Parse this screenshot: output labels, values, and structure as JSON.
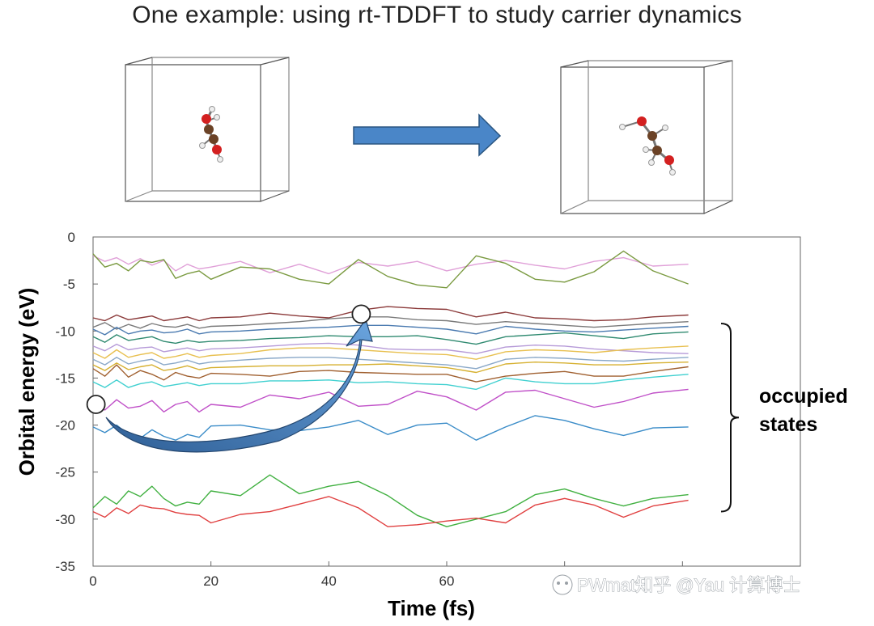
{
  "slide": {
    "title": "One example: using rt-TDDFT to study carrier dynamics",
    "colors": {
      "arrow_fill": "#4a86c8",
      "arrow_stroke": "#2a5580"
    }
  },
  "molecule_panels": [
    {
      "name": "initial-structure",
      "atoms": [
        "O",
        "C",
        "C",
        "O",
        "H",
        "H",
        "H",
        "H",
        "H",
        "H"
      ]
    },
    {
      "name": "final-structure",
      "atoms": [
        "O",
        "C",
        "C",
        "O",
        "H",
        "H",
        "H",
        "H",
        "H",
        "H"
      ]
    }
  ],
  "chart_data": {
    "type": "line",
    "xlabel": "Time (fs)",
    "ylabel": "Orbital energy (eV)",
    "xlim": [
      0,
      120
    ],
    "ylim": [
      -35,
      0
    ],
    "xticks": [
      0,
      20,
      40,
      60,
      80,
      100,
      120
    ],
    "yticks": [
      0,
      -5,
      -10,
      -15,
      -20,
      -25,
      -30,
      -35
    ],
    "xtick_labels": [
      "0",
      "20",
      "40",
      "60",
      "",
      "",
      ""
    ],
    "ytick_labels": [
      "0",
      "-5",
      "-10",
      "-15",
      "-20",
      "-25",
      "-30",
      "-35"
    ],
    "grid": false,
    "x": [
      0,
      2,
      4,
      6,
      8,
      10,
      12,
      14,
      16,
      18,
      20,
      25,
      30,
      35,
      40,
      45,
      50,
      55,
      60,
      65,
      70,
      75,
      80,
      85,
      90,
      95,
      101
    ],
    "series": [
      {
        "color": "#e0a0d8",
        "values": [
          -2.0,
          -2.6,
          -2.2,
          -2.9,
          -2.3,
          -3.0,
          -2.5,
          -3.6,
          -2.9,
          -3.4,
          -3.2,
          -2.6,
          -3.8,
          -2.9,
          -3.9,
          -2.7,
          -3.1,
          -2.6,
          -3.6,
          -2.9,
          -2.5,
          -3.0,
          -3.4,
          -2.6,
          -2.2,
          -3.1,
          -2.9
        ]
      },
      {
        "color": "#7a9a40",
        "values": [
          -1.8,
          -3.2,
          -2.8,
          -3.6,
          -2.5,
          -2.7,
          -2.4,
          -4.4,
          -3.9,
          -3.6,
          -4.5,
          -3.2,
          -3.4,
          -4.5,
          -5.0,
          -2.4,
          -4.2,
          -5.1,
          -5.4,
          -2.0,
          -2.8,
          -4.5,
          -4.8,
          -3.7,
          -1.5,
          -3.6,
          -5.0
        ]
      },
      {
        "color": "#8b3a3a",
        "values": [
          -8.6,
          -8.9,
          -8.3,
          -8.8,
          -8.6,
          -8.4,
          -8.9,
          -8.7,
          -8.5,
          -8.9,
          -8.6,
          -8.5,
          -8.1,
          -8.4,
          -8.6,
          -7.8,
          -7.4,
          -7.6,
          -7.7,
          -8.5,
          -8.0,
          -8.6,
          -8.7,
          -8.9,
          -8.8,
          -8.5,
          -8.3
        ]
      },
      {
        "color": "#7a7a7a",
        "values": [
          -9.6,
          -9.1,
          -9.8,
          -9.3,
          -9.7,
          -9.2,
          -9.5,
          -9.6,
          -9.3,
          -9.7,
          -9.5,
          -9.4,
          -9.2,
          -9.0,
          -8.7,
          -8.5,
          -8.5,
          -8.8,
          -8.9,
          -9.3,
          -9.0,
          -9.2,
          -9.4,
          -9.6,
          -9.4,
          -9.2,
          -9.0
        ]
      },
      {
        "color": "#4a7ab0",
        "values": [
          -9.8,
          -10.4,
          -9.6,
          -10.3,
          -10.0,
          -9.9,
          -10.2,
          -10.1,
          -9.8,
          -10.3,
          -10.1,
          -10.0,
          -9.8,
          -9.7,
          -9.6,
          -9.4,
          -9.4,
          -9.6,
          -9.8,
          -10.3,
          -9.5,
          -9.8,
          -10.0,
          -10.1,
          -9.9,
          -9.7,
          -9.5
        ]
      },
      {
        "color": "#2f8a70",
        "values": [
          -10.6,
          -11.2,
          -10.4,
          -11.0,
          -10.8,
          -10.6,
          -11.1,
          -11.3,
          -11.0,
          -11.2,
          -11.1,
          -11.0,
          -10.8,
          -10.7,
          -10.5,
          -10.6,
          -10.6,
          -10.5,
          -10.9,
          -11.4,
          -10.6,
          -10.4,
          -10.2,
          -10.5,
          -10.8,
          -10.3,
          -10.1
        ]
      },
      {
        "color": "#b69ad8",
        "values": [
          -11.6,
          -12.1,
          -11.4,
          -12.0,
          -11.8,
          -11.7,
          -12.2,
          -12.0,
          -11.8,
          -12.1,
          -11.9,
          -11.8,
          -11.6,
          -11.4,
          -11.3,
          -11.5,
          -11.9,
          -12.0,
          -12.0,
          -12.4,
          -11.7,
          -11.5,
          -11.6,
          -11.9,
          -12.1,
          -12.3,
          -12.4
        ]
      },
      {
        "color": "#e8c050",
        "values": [
          -12.3,
          -12.9,
          -12.0,
          -12.8,
          -12.5,
          -12.3,
          -12.9,
          -12.7,
          -12.4,
          -12.8,
          -12.6,
          -12.4,
          -12.0,
          -11.8,
          -11.8,
          -12.0,
          -12.2,
          -12.4,
          -12.5,
          -13.0,
          -12.2,
          -12.0,
          -12.1,
          -12.3,
          -12.0,
          -11.8,
          -11.6
        ]
      },
      {
        "color": "#8aa8c8",
        "values": [
          -13.0,
          -13.6,
          -12.8,
          -13.5,
          -13.2,
          -13.0,
          -13.6,
          -13.4,
          -13.1,
          -13.5,
          -13.3,
          -13.1,
          -12.9,
          -12.8,
          -12.8,
          -13.0,
          -13.2,
          -13.4,
          -13.6,
          -14.0,
          -13.0,
          -12.8,
          -12.9,
          -13.1,
          -13.2,
          -13.0,
          -12.8
        ]
      },
      {
        "color": "#d6b030",
        "values": [
          -13.6,
          -14.2,
          -13.4,
          -14.1,
          -13.8,
          -13.6,
          -14.2,
          -14.0,
          -13.7,
          -14.1,
          -13.9,
          -13.8,
          -13.7,
          -13.7,
          -13.6,
          -13.6,
          -13.5,
          -13.7,
          -13.9,
          -14.4,
          -13.5,
          -13.3,
          -13.4,
          -13.6,
          -13.6,
          -13.4,
          -13.3
        ]
      },
      {
        "color": "#a06030",
        "values": [
          -14.0,
          -14.8,
          -13.6,
          -14.9,
          -14.2,
          -14.6,
          -15.2,
          -14.4,
          -14.8,
          -15.0,
          -14.5,
          -14.6,
          -14.8,
          -14.3,
          -14.2,
          -14.4,
          -14.5,
          -14.6,
          -14.6,
          -15.4,
          -14.8,
          -14.5,
          -14.3,
          -14.8,
          -14.8,
          -14.3,
          -13.8
        ]
      },
      {
        "color": "#40d0d0",
        "values": [
          -15.4,
          -16.0,
          -15.2,
          -16.0,
          -15.6,
          -15.4,
          -15.9,
          -15.7,
          -15.5,
          -15.8,
          -15.6,
          -15.6,
          -15.3,
          -15.3,
          -15.2,
          -15.5,
          -15.4,
          -15.6,
          -15.7,
          -16.2,
          -15.0,
          -15.4,
          -15.6,
          -15.6,
          -15.2,
          -14.9,
          -14.6
        ]
      },
      {
        "color": "#c050c8",
        "values": [
          -17.5,
          -18.4,
          -17.3,
          -18.2,
          -18.0,
          -17.4,
          -18.6,
          -17.8,
          -17.5,
          -18.6,
          -17.8,
          -18.1,
          -16.8,
          -17.2,
          -16.5,
          -18.0,
          -17.8,
          -16.4,
          -17.0,
          -18.4,
          -16.5,
          -16.3,
          -17.2,
          -18.1,
          -17.5,
          -16.6,
          -16.2
        ]
      },
      {
        "color": "#3a8cc8",
        "values": [
          -20.2,
          -20.8,
          -20.0,
          -21.0,
          -21.4,
          -20.5,
          -21.2,
          -21.6,
          -21.0,
          -21.3,
          -20.1,
          -20.0,
          -20.5,
          -20.6,
          -20.2,
          -19.5,
          -21.0,
          -20.0,
          -19.8,
          -21.6,
          -20.2,
          -19.0,
          -19.5,
          -20.4,
          -21.1,
          -20.3,
          -20.2
        ]
      },
      {
        "color": "#40b040",
        "values": [
          -28.8,
          -27.6,
          -28.4,
          -27.0,
          -27.6,
          -26.5,
          -27.8,
          -28.6,
          -28.2,
          -28.4,
          -27.0,
          -27.5,
          -25.3,
          -27.3,
          -26.5,
          -26.0,
          -27.5,
          -29.6,
          -30.8,
          -30.0,
          -29.2,
          -27.4,
          -26.8,
          -27.8,
          -28.6,
          -27.8,
          -27.4
        ]
      },
      {
        "color": "#e04040",
        "values": [
          -29.2,
          -29.8,
          -28.8,
          -29.4,
          -28.5,
          -28.8,
          -28.9,
          -29.3,
          -29.5,
          -29.6,
          -30.4,
          -29.5,
          -29.2,
          -28.4,
          -27.6,
          -28.8,
          -30.8,
          -30.6,
          -30.2,
          -29.9,
          -30.4,
          -28.5,
          -27.8,
          -28.5,
          -29.8,
          -28.6,
          -28.0
        ]
      }
    ],
    "annotations": {
      "bracket_label": [
        "occupied",
        "states"
      ],
      "hole_marker": {
        "x": 0.5,
        "y": -17.8
      },
      "electron_marker": {
        "x": 45.5,
        "y": -8.2
      },
      "bracket_range": [
        -9.2,
        -29.2
      ]
    }
  },
  "watermark": {
    "text": "PWmat知乎 @Yau 计算博士"
  }
}
